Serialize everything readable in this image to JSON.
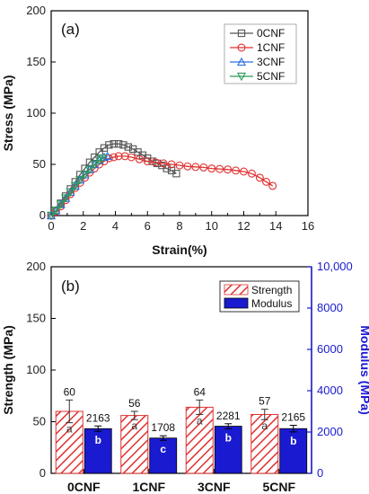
{
  "chart_data": [
    {
      "type": "line",
      "panel_label": "(a)",
      "xlabel": "Strain(%)",
      "ylabel": "Stress (MPa)",
      "xlim": [
        0,
        16
      ],
      "ylim": [
        0,
        200
      ],
      "xticks": [
        "0",
        "2",
        "4",
        "6",
        "8",
        "10",
        "12",
        "14",
        "16"
      ],
      "yticks": [
        "0",
        "50",
        "100",
        "150",
        "200"
      ],
      "legend_position": "top-right",
      "series": [
        {
          "name": "0CNF",
          "color": "#555555",
          "marker": "square",
          "points": [
            [
              0,
              0
            ],
            [
              0.3,
              5
            ],
            [
              0.6,
              12
            ],
            [
              0.9,
              19
            ],
            [
              1.2,
              26
            ],
            [
              1.5,
              33
            ],
            [
              1.8,
              40
            ],
            [
              2.1,
              46
            ],
            [
              2.4,
              52
            ],
            [
              2.7,
              57
            ],
            [
              3.0,
              62
            ],
            [
              3.3,
              66
            ],
            [
              3.6,
              69
            ],
            [
              3.9,
              70
            ],
            [
              4.2,
              70
            ],
            [
              4.5,
              69
            ],
            [
              4.8,
              67
            ],
            [
              5.1,
              65
            ],
            [
              5.4,
              62
            ],
            [
              5.7,
              59
            ],
            [
              6.0,
              56
            ],
            [
              6.3,
              53
            ],
            [
              6.6,
              51
            ],
            [
              6.9,
              49
            ],
            [
              7.2,
              46
            ],
            [
              7.5,
              44
            ],
            [
              7.8,
              41
            ]
          ]
        },
        {
          "name": "1CNF",
          "color": "#e03030",
          "marker": "circle",
          "points": [
            [
              0,
              0
            ],
            [
              0.3,
              4
            ],
            [
              0.6,
              9
            ],
            [
              0.9,
              15
            ],
            [
              1.2,
              21
            ],
            [
              1.5,
              27
            ],
            [
              1.8,
              32
            ],
            [
              2.1,
              37
            ],
            [
              2.4,
              42
            ],
            [
              2.7,
              46
            ],
            [
              3.0,
              50
            ],
            [
              3.3,
              53
            ],
            [
              3.6,
              56
            ],
            [
              3.9,
              57
            ],
            [
              4.2,
              58
            ],
            [
              4.6,
              58
            ],
            [
              5.0,
              57
            ],
            [
              5.5,
              55
            ],
            [
              6.0,
              53
            ],
            [
              6.5,
              52
            ],
            [
              7.0,
              51
            ],
            [
              7.5,
              50
            ],
            [
              8.0,
              49
            ],
            [
              8.5,
              48
            ],
            [
              9.0,
              47.5
            ],
            [
              9.5,
              47
            ],
            [
              10.0,
              46
            ],
            [
              10.5,
              45.5
            ],
            [
              11.0,
              45
            ],
            [
              11.5,
              44
            ],
            [
              12.0,
              43
            ],
            [
              12.5,
              41
            ],
            [
              13.0,
              37
            ],
            [
              13.4,
              33
            ],
            [
              13.8,
              29
            ]
          ]
        },
        {
          "name": "3CNF",
          "color": "#2a6fe0",
          "marker": "triangle-up",
          "points": [
            [
              0,
              0
            ],
            [
              0.3,
              5
            ],
            [
              0.6,
              11
            ],
            [
              0.9,
              17
            ],
            [
              1.2,
              23
            ],
            [
              1.5,
              29
            ],
            [
              1.8,
              35
            ],
            [
              2.1,
              40
            ],
            [
              2.4,
              45
            ],
            [
              2.7,
              50
            ],
            [
              3.0,
              54
            ],
            [
              3.3,
              57
            ],
            [
              3.5,
              58
            ]
          ]
        },
        {
          "name": "5CNF",
          "color": "#2a9a5a",
          "marker": "triangle-down",
          "points": [
            [
              0,
              0
            ],
            [
              0.3,
              5
            ],
            [
              0.6,
              11
            ],
            [
              0.9,
              17
            ],
            [
              1.2,
              23
            ],
            [
              1.5,
              29
            ],
            [
              1.8,
              35
            ],
            [
              2.1,
              40
            ],
            [
              2.4,
              45
            ],
            [
              2.7,
              50
            ],
            [
              3.0,
              54
            ],
            [
              3.2,
              56
            ]
          ]
        }
      ]
    },
    {
      "type": "bar",
      "panel_label": "(b)",
      "categories": [
        "0CNF",
        "1CNF",
        "3CNF",
        "5CNF"
      ],
      "ylabel": "Strength (MPa)",
      "y2label": "Modulus (MPa)",
      "ylim": [
        0,
        200
      ],
      "y2lim": [
        0,
        10000
      ],
      "yticks": [
        "0",
        "50",
        "100",
        "150",
        "200"
      ],
      "y2ticks": [
        "0",
        "2000",
        "4000",
        "6000",
        "8000",
        "10,000"
      ],
      "y2_color": "#1a1ad0",
      "legend_position": "top-right",
      "series": [
        {
          "name": "Strength",
          "axis": "left",
          "color": "#e03030",
          "pattern": "hatched",
          "values": [
            60,
            56,
            64,
            57
          ],
          "errors": [
            11,
            4,
            7,
            5
          ],
          "labels": [
            "60",
            "56",
            "64",
            "57"
          ],
          "letters": [
            "a",
            "a",
            "a",
            "a"
          ]
        },
        {
          "name": "Modulus",
          "axis": "right",
          "color": "#1a1ad0",
          "pattern": "solid",
          "values": [
            2163,
            1708,
            2281,
            2165
          ],
          "errors": [
            130,
            110,
            120,
            160
          ],
          "labels": [
            "2163",
            "1708",
            "2281",
            "2165"
          ],
          "letters": [
            "b",
            "c",
            "b",
            "b"
          ]
        }
      ]
    }
  ]
}
